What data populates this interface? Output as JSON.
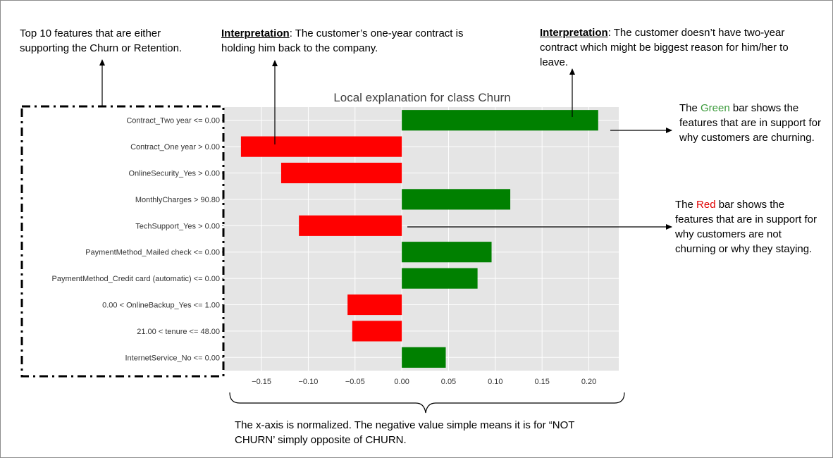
{
  "annotations": {
    "top_features": "Top 10 features that are either supporting the Churn or Retention.",
    "interp_one_label": "Interpretation",
    "interp_one_text": ": The customer’s one-year contract is holding him back to the company.",
    "interp_two_label": "Interpretation",
    "interp_two_text": ": The customer doesn’t have two-year contract which might be biggest reason for him/her to leave.",
    "green_pre": "The ",
    "green_word": "Green",
    "green_post": " bar shows the features that are in support for why customers are churning.",
    "red_pre": "The ",
    "red_word": "Red",
    "red_post": " bar shows the features that are in support for why customers are not churning or why they staying.",
    "xaxis_note": "The x-axis is normalized. The negative value simple means it is for “NOT CHURN’ simply opposite of CHURN."
  },
  "colors": {
    "positive": "#008000",
    "negative": "#ff0000",
    "plot_bg": "#e5e5e5",
    "grid": "#ffffff"
  },
  "chart_data": {
    "type": "bar",
    "orientation": "horizontal",
    "title": "Local explanation for class Churn",
    "categories": [
      "Contract_Two year <= 0.00",
      "Contract_One year > 0.00",
      "OnlineSecurity_Yes > 0.00",
      "MonthlyCharges > 90.80",
      "TechSupport_Yes > 0.00",
      "PaymentMethod_Mailed check <= 0.00",
      "PaymentMethod_Credit card (automatic) <= 0.00",
      "0.00 < OnlineBackup_Yes <= 1.00",
      "21.00 < tenure <= 48.00",
      "InternetService_No <= 0.00"
    ],
    "values": [
      0.21,
      -0.172,
      -0.129,
      0.116,
      -0.11,
      0.096,
      0.081,
      -0.058,
      -0.053,
      0.047
    ],
    "xlim": [
      -0.19,
      0.232
    ],
    "xticks": [
      -0.15,
      -0.1,
      -0.05,
      0.0,
      0.05,
      0.1,
      0.15,
      0.2
    ],
    "xtick_labels": [
      "−0.15",
      "−0.10",
      "−0.05",
      "0.00",
      "0.05",
      "0.10",
      "0.15",
      "0.20"
    ],
    "xlabel": "",
    "ylabel": "",
    "grid": true
  }
}
